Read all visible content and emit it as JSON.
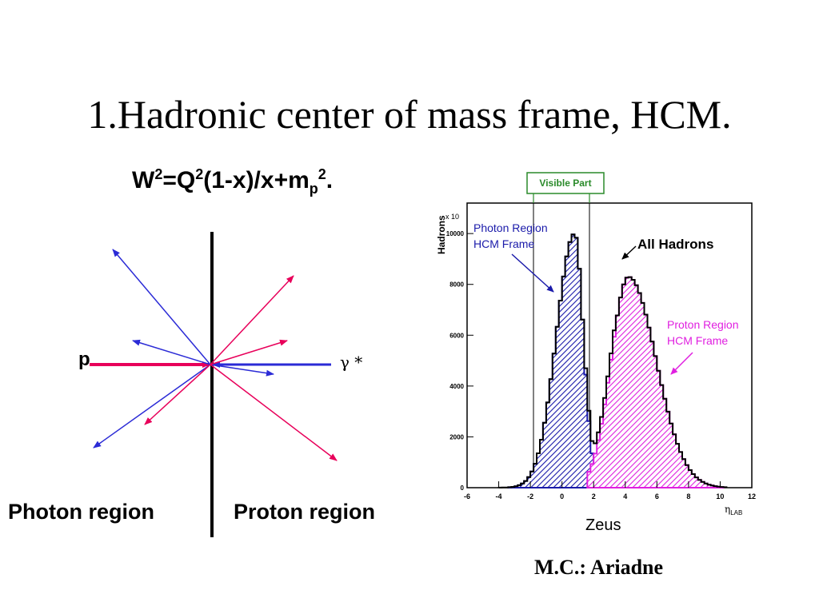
{
  "slide": {
    "title": "1.Hadronic center of mass frame, HCM.",
    "formula": {
      "w": "W",
      "w_exp": "2",
      "eq": "=Q",
      "q_exp": "2",
      "body": "(1-x)/x+m",
      "m_sub": "p",
      "m_exp": "2",
      "end": "."
    },
    "diagram": {
      "proton_label": "p",
      "photon_label": "γ *",
      "photon_region": "Photon region",
      "proton_region": "Proton region",
      "colors": {
        "proton": "#e8005a",
        "photon": "#2b2bd6",
        "divider": "#000000"
      }
    },
    "plot": {
      "y_axis_label": "Hadrons",
      "y_scale_label": "x 10",
      "x_axis_label": "η",
      "x_axis_sub": "LAB",
      "visible_part": "Visible Part",
      "label_all_hadrons": "All Hadrons",
      "label_photon_line1": "Photon Region",
      "label_photon_line2": "HCM Frame",
      "label_proton_line1": "Proton Region",
      "label_proton_line2": "HCM Frame",
      "x_ticks": [
        "-6",
        "-4",
        "-2",
        "0",
        "2",
        "4",
        "6",
        "8",
        "10",
        "12"
      ],
      "y_ticks": [
        "0",
        "2000",
        "4000",
        "6000",
        "8000",
        "10000"
      ],
      "colors": {
        "photon": "#1a1aaa",
        "proton": "#e020e0",
        "all": "#000000",
        "visible": "#2a8a2a"
      }
    },
    "caption_zeus": "Zeus",
    "caption_mc": "M.C.: Ariadne"
  }
}
